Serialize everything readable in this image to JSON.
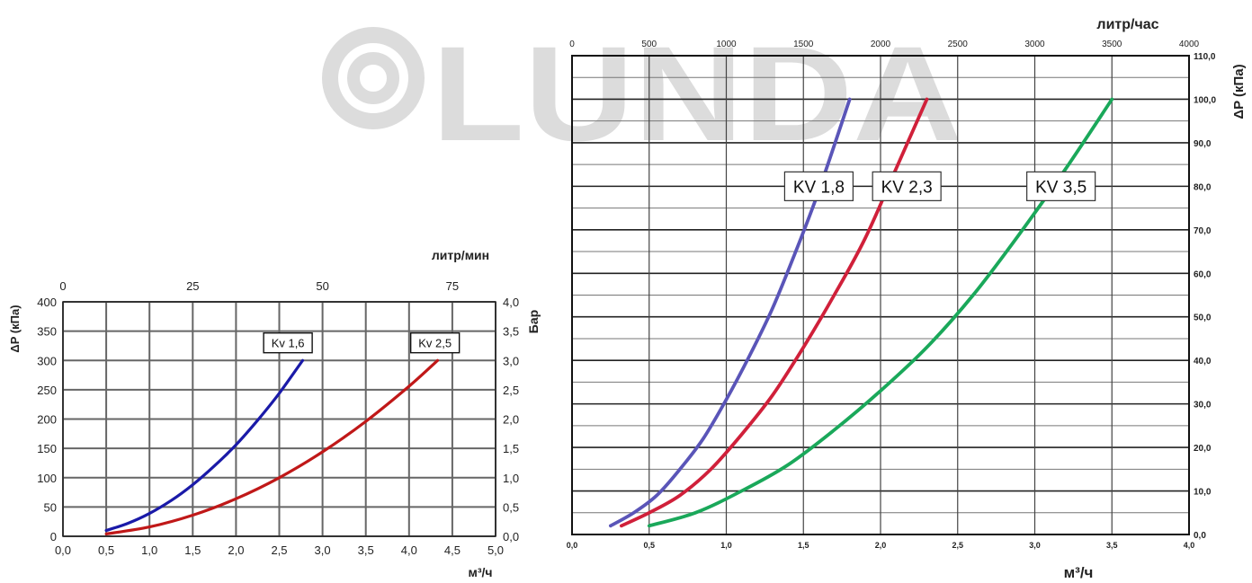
{
  "watermark": {
    "text": "LUNDA",
    "color": "#dcdcdc"
  },
  "chart_data": [
    {
      "type": "line",
      "title": "",
      "xlabel": "м³/ч",
      "ylabel": "ΔP (кПа)",
      "x2label": "литр/мин",
      "y2label": "Бар",
      "xlim": [
        0,
        5
      ],
      "ylim": [
        0,
        400
      ],
      "x2lim": [
        0,
        83.33
      ],
      "y2lim": [
        0,
        4
      ],
      "grid": true,
      "x_ticks": [
        "0,0",
        "0,5",
        "1,0",
        "1,5",
        "2,0",
        "2,5",
        "3,0",
        "3,5",
        "4,0",
        "4,5",
        "5,0"
      ],
      "y_ticks": [
        "0",
        "50",
        "100",
        "150",
        "200",
        "250",
        "300",
        "350",
        "400"
      ],
      "x2_ticks": [
        {
          "value": 0,
          "label": "0"
        },
        {
          "value": 25,
          "label": "25"
        },
        {
          "value": 50,
          "label": "50"
        },
        {
          "value": 75,
          "label": "75"
        }
      ],
      "y2_ticks": [
        "0,0",
        "0,5",
        "1,0",
        "1,5",
        "2,0",
        "2,5",
        "3,0",
        "3,5",
        "4,0"
      ],
      "series": [
        {
          "name": "Kv 1,6",
          "color": "#1a1aa8",
          "x": [
            0.5,
            0.75,
            1.0,
            1.25,
            1.5,
            1.75,
            2.0,
            2.25,
            2.5,
            2.77
          ],
          "y": [
            10,
            22,
            39,
            61,
            88,
            120,
            156,
            198,
            244,
            300
          ]
        },
        {
          "name": "Kv 2,5",
          "color": "#c01818",
          "x": [
            0.5,
            1.0,
            1.5,
            2.0,
            2.5,
            3.0,
            3.5,
            4.0,
            4.33
          ],
          "y": [
            4,
            16,
            36,
            64,
            100,
            144,
            196,
            256,
            300
          ]
        }
      ],
      "annotations": [
        {
          "text": "Kv 1,6",
          "x": 2.6,
          "y": 330
        },
        {
          "text": "Kv 2,5",
          "x": 4.3,
          "y": 330
        }
      ]
    },
    {
      "type": "line",
      "title": "",
      "xlabel": "м³/ч",
      "ylabel": "ΔP (кПа)",
      "x2label": "литр/час",
      "xlim": [
        0,
        4
      ],
      "ylim": [
        0,
        110
      ],
      "x2lim": [
        0,
        4000
      ],
      "grid": true,
      "x_ticks": [
        "0,0",
        "0,5",
        "1,0",
        "1,5",
        "2,0",
        "2,5",
        "3,0",
        "3,5",
        "4,0"
      ],
      "x2_ticks": [
        {
          "value": 0,
          "label": "0"
        },
        {
          "value": 500,
          "label": "500"
        },
        {
          "value": 1000,
          "label": "1000"
        },
        {
          "value": 1500,
          "label": "1500"
        },
        {
          "value": 2000,
          "label": "2000"
        },
        {
          "value": 2500,
          "label": "2500"
        },
        {
          "value": 3000,
          "label": "3000"
        },
        {
          "value": 3500,
          "label": "3500"
        },
        {
          "value": 4000,
          "label": "4000"
        }
      ],
      "y_ticks": [
        {
          "value": 0,
          "label": "0,0"
        },
        {
          "value": 10,
          "label": "10,0"
        },
        {
          "value": 20,
          "label": "20,0"
        },
        {
          "value": 30,
          "label": "30,0"
        },
        {
          "value": 40,
          "label": "40,0"
        },
        {
          "value": 50,
          "label": "50,0"
        },
        {
          "value": 60,
          "label": "60,0"
        },
        {
          "value": 70,
          "label": "70,0"
        },
        {
          "value": 80,
          "label": "80,0"
        },
        {
          "value": 90,
          "label": "90,0"
        },
        {
          "value": 100,
          "label": "100,0"
        },
        {
          "value": 110,
          "label": "110,0"
        }
      ],
      "series": [
        {
          "name": "KV 1,8",
          "color": "#5a55b8",
          "x": [
            0.25,
            0.4,
            0.55,
            0.7,
            0.85,
            1.0,
            1.15,
            1.3,
            1.45,
            1.6,
            1.8
          ],
          "y": [
            2,
            5,
            9,
            15,
            22,
            31,
            41,
            52,
            65,
            79,
            100
          ]
        },
        {
          "name": "KV 2,3",
          "color": "#d0203a",
          "x": [
            0.32,
            0.5,
            0.7,
            0.9,
            1.1,
            1.3,
            1.5,
            1.7,
            1.9,
            2.1,
            2.3
          ],
          "y": [
            2,
            5,
            9,
            15,
            23,
            32,
            43,
            55,
            68,
            84,
            100
          ]
        },
        {
          "name": "KV 3,5",
          "color": "#1aa85a",
          "x": [
            0.5,
            0.8,
            1.1,
            1.4,
            1.7,
            2.0,
            2.3,
            2.6,
            2.9,
            3.2,
            3.5
          ],
          "y": [
            2,
            5,
            10,
            16,
            24,
            33,
            43,
            55,
            69,
            84,
            100
          ]
        }
      ],
      "annotations": [
        {
          "text": "KV 1,8",
          "x": 1.6,
          "y": 80
        },
        {
          "text": "KV 2,3",
          "x": 2.17,
          "y": 80
        },
        {
          "text": "KV 3,5",
          "x": 3.17,
          "y": 80
        }
      ]
    }
  ]
}
